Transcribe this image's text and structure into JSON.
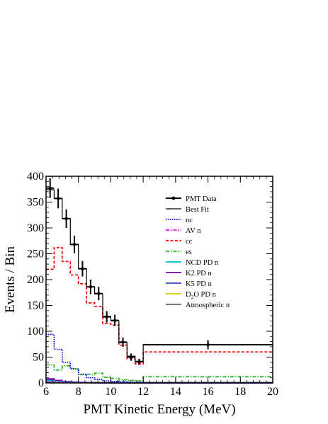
{
  "chart_data": {
    "type": "line",
    "xlabel": "PMT Kinetic Energy (MeV)",
    "ylabel": "Events / Bin",
    "xlim": [
      6,
      20
    ],
    "ylim": [
      0,
      400
    ],
    "x_ticks": [
      6,
      8,
      10,
      12,
      14,
      16,
      18,
      20
    ],
    "y_ticks": [
      0,
      50,
      100,
      150,
      200,
      250,
      300,
      350,
      400
    ],
    "legend_position": "top-right",
    "bin_edges": [
      6.0,
      6.5,
      7.0,
      7.5,
      8.0,
      8.5,
      9.0,
      9.5,
      10.0,
      10.5,
      11.0,
      11.5,
      12.0,
      20.0
    ],
    "data_points": {
      "name": "PMT Data",
      "x": [
        6.25,
        6.75,
        7.25,
        7.75,
        8.25,
        8.75,
        9.25,
        9.75,
        10.25,
        10.75,
        11.25,
        11.75,
        16.0
      ],
      "y": [
        377,
        357,
        318,
        268,
        221,
        186,
        173,
        128,
        121,
        79,
        50,
        41,
        74
      ],
      "err": [
        19,
        19,
        18,
        17,
        15,
        14,
        13,
        11,
        11,
        9,
        7,
        6,
        9
      ]
    },
    "series": [
      {
        "name": "Best Fit",
        "color": "#000000",
        "dash": "solid",
        "values": [
          374,
          357,
          318,
          268,
          221,
          186,
          172,
          129,
          120,
          78,
          52,
          42,
          74
        ]
      },
      {
        "name": "nc",
        "color": "#0000ee",
        "dash": "dotted",
        "values": [
          94,
          65,
          40,
          27,
          17,
          10,
          7,
          4,
          3,
          2,
          1,
          1,
          0
        ]
      },
      {
        "name": "AV n",
        "color": "#ee00ee",
        "dash": "dashdot",
        "values": [
          2,
          1.5,
          1,
          0.5,
          0.5,
          0.3,
          0.2,
          0.1,
          0.1,
          0,
          0,
          0,
          0
        ]
      },
      {
        "name": "cc",
        "color": "#ff0000",
        "dash": "dashed",
        "values": [
          220,
          262,
          235,
          209,
          192,
          155,
          148,
          115,
          112,
          73,
          47,
          37,
          60
        ]
      },
      {
        "name": "es",
        "color": "#22bb22",
        "dash": "dashdot",
        "values": [
          35,
          25,
          33,
          28,
          16,
          17,
          19,
          11,
          9,
          6,
          5,
          4,
          12
        ]
      },
      {
        "name": "NCD PD n",
        "color": "#00bbcc",
        "dash": "solid",
        "values": [
          4,
          3,
          2,
          1,
          0.5,
          0.5,
          0,
          0,
          0,
          0,
          0,
          0,
          0
        ]
      },
      {
        "name": "K2 PD n",
        "color": "#7700aa",
        "dash": "solid",
        "values": [
          8,
          5,
          3,
          2,
          1,
          1,
          0,
          0,
          0,
          0,
          0,
          0,
          0
        ]
      },
      {
        "name": "K5 PD n",
        "color": "#3344cc",
        "dash": "solid",
        "values": [
          6,
          4,
          2,
          1,
          1,
          0.5,
          0,
          0,
          0,
          0,
          0,
          0,
          0
        ]
      },
      {
        "name": "D2O PD n",
        "color": "#cccc00",
        "dash": "solid",
        "values": [
          3,
          2,
          1,
          1,
          0.5,
          0,
          0,
          0,
          0,
          0,
          0,
          0,
          0
        ]
      },
      {
        "name": "Atmospheric n",
        "color": "#666666",
        "dash": "solid",
        "values": [
          1,
          1,
          1,
          1,
          1,
          1,
          1,
          1,
          1,
          1,
          1,
          1,
          1
        ]
      }
    ]
  }
}
